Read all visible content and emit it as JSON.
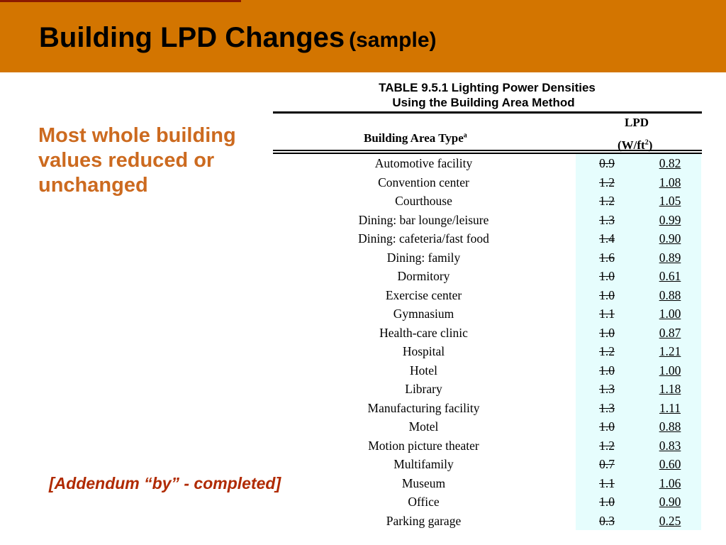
{
  "slide": {
    "title": "Building LPD Changes",
    "title_suffix": "(sample)",
    "side_note": "Most whole building values reduced or unchanged",
    "addendum": "[Addendum “by” - completed]"
  },
  "table": {
    "caption_line1": "TABLE 9.5.1 Lighting Power Densities",
    "caption_line2": "Using the Building Area Method",
    "col_type": "Building Area Type",
    "col_type_sup": "a",
    "col_lpd": "LPD",
    "col_unit_prefix": "(W/ft",
    "col_unit_sup": "2",
    "col_unit_suffix": ")",
    "rows": [
      {
        "type": "Automotive facility",
        "old": "0.9",
        "new": "0.82"
      },
      {
        "type": "Convention center",
        "old": "1.2",
        "new": "1.08"
      },
      {
        "type": "Courthouse",
        "old": "1.2",
        "new": "1.05"
      },
      {
        "type": "Dining: bar lounge/leisure",
        "old": "1.3",
        "new": "0.99"
      },
      {
        "type": "Dining: cafeteria/fast food",
        "old": "1.4",
        "new": "0.90"
      },
      {
        "type": "Dining: family",
        "old": "1.6",
        "new": "0.89"
      },
      {
        "type": "Dormitory",
        "old": "1.0",
        "new": "0.61"
      },
      {
        "type": "Exercise center",
        "old": "1.0",
        "new": "0.88"
      },
      {
        "type": "Gymnasium",
        "old": "1.1",
        "new": "1.00"
      },
      {
        "type": "Health-care clinic",
        "old": "1.0",
        "new": "0.87"
      },
      {
        "type": "Hospital",
        "old": "1.2",
        "new": "1.21"
      },
      {
        "type": "Hotel",
        "old": "1.0",
        "new": "1.00"
      },
      {
        "type": "Library",
        "old": "1.3",
        "new": "1.18"
      },
      {
        "type": "Manufacturing facility",
        "old": "1.3",
        "new": "1.11"
      },
      {
        "type": "Motel",
        "old": "1.0",
        "new": "0.88"
      },
      {
        "type": "Motion picture theater",
        "old": "1.2",
        "new": "0.83"
      },
      {
        "type": "Multifamily",
        "old": "0.7",
        "new": "0.60"
      },
      {
        "type": "Museum",
        "old": "1.1",
        "new": "1.06"
      },
      {
        "type": "Office",
        "old": "1.0",
        "new": "0.90"
      },
      {
        "type": "Parking garage",
        "old": "0.3",
        "new": "0.25"
      }
    ]
  },
  "colors": {
    "header": "#d37500",
    "accent_text": "#cc6a1f",
    "addendum_text": "#b02a00",
    "lpd_highlight": "#e6fdfd"
  }
}
